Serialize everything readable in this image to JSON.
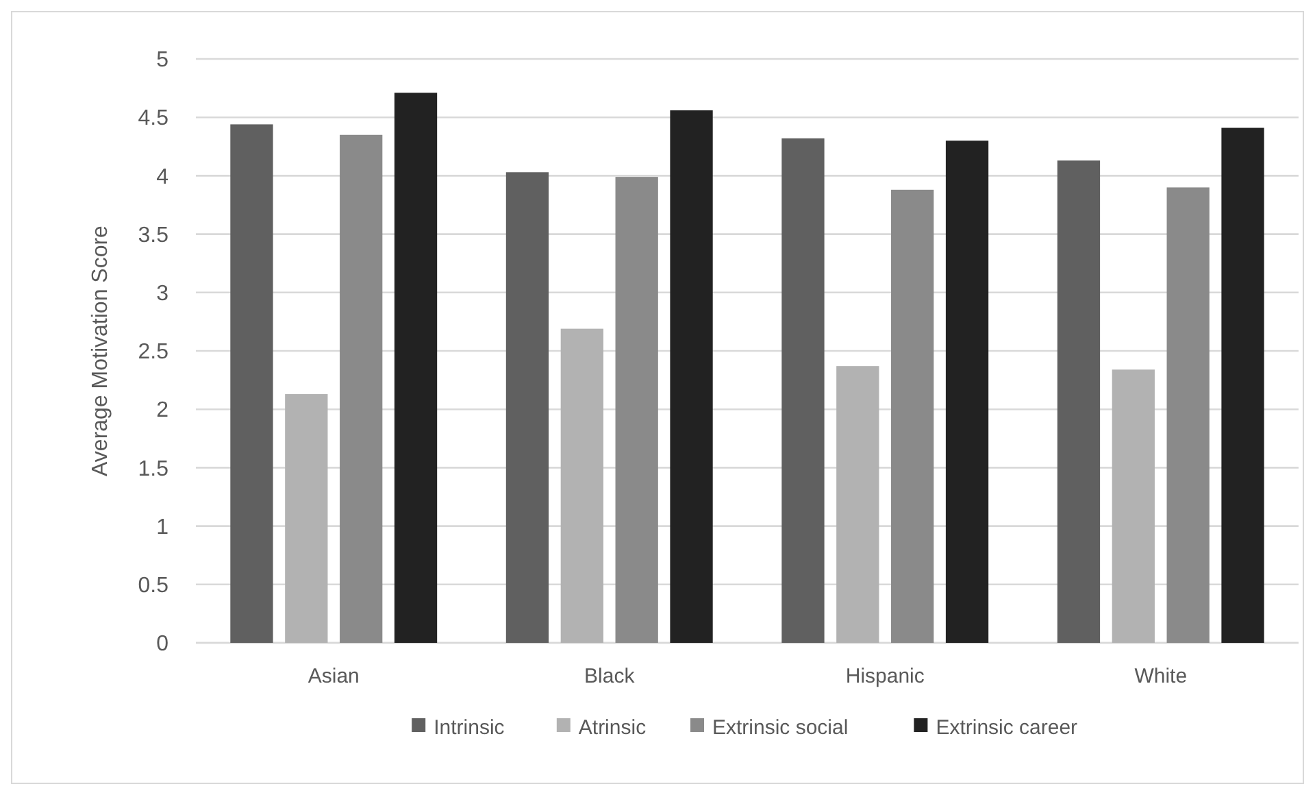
{
  "chart_data": {
    "type": "bar",
    "ylabel": "Average Motivation Score",
    "categories": [
      "Asian",
      "Black",
      "Hispanic",
      "White"
    ],
    "series": [
      {
        "name": "Intrinsic",
        "color": "#606060",
        "values": [
          4.44,
          4.03,
          4.32,
          4.13
        ]
      },
      {
        "name": "Atrinsic",
        "color": "#b2b2b2",
        "values": [
          2.13,
          2.69,
          2.37,
          2.34
        ]
      },
      {
        "name": "Extrinsic social",
        "color": "#8a8a8a",
        "values": [
          4.35,
          3.99,
          3.88,
          3.9
        ]
      },
      {
        "name": "Extrinsic career",
        "color": "#222222",
        "values": [
          4.71,
          4.56,
          4.3,
          4.41
        ]
      }
    ],
    "ylim": [
      0,
      5
    ],
    "yticks": [
      0,
      0.5,
      1,
      1.5,
      2,
      2.5,
      3,
      3.5,
      4,
      4.5,
      5
    ],
    "grid": "y",
    "legend": "bottom"
  }
}
